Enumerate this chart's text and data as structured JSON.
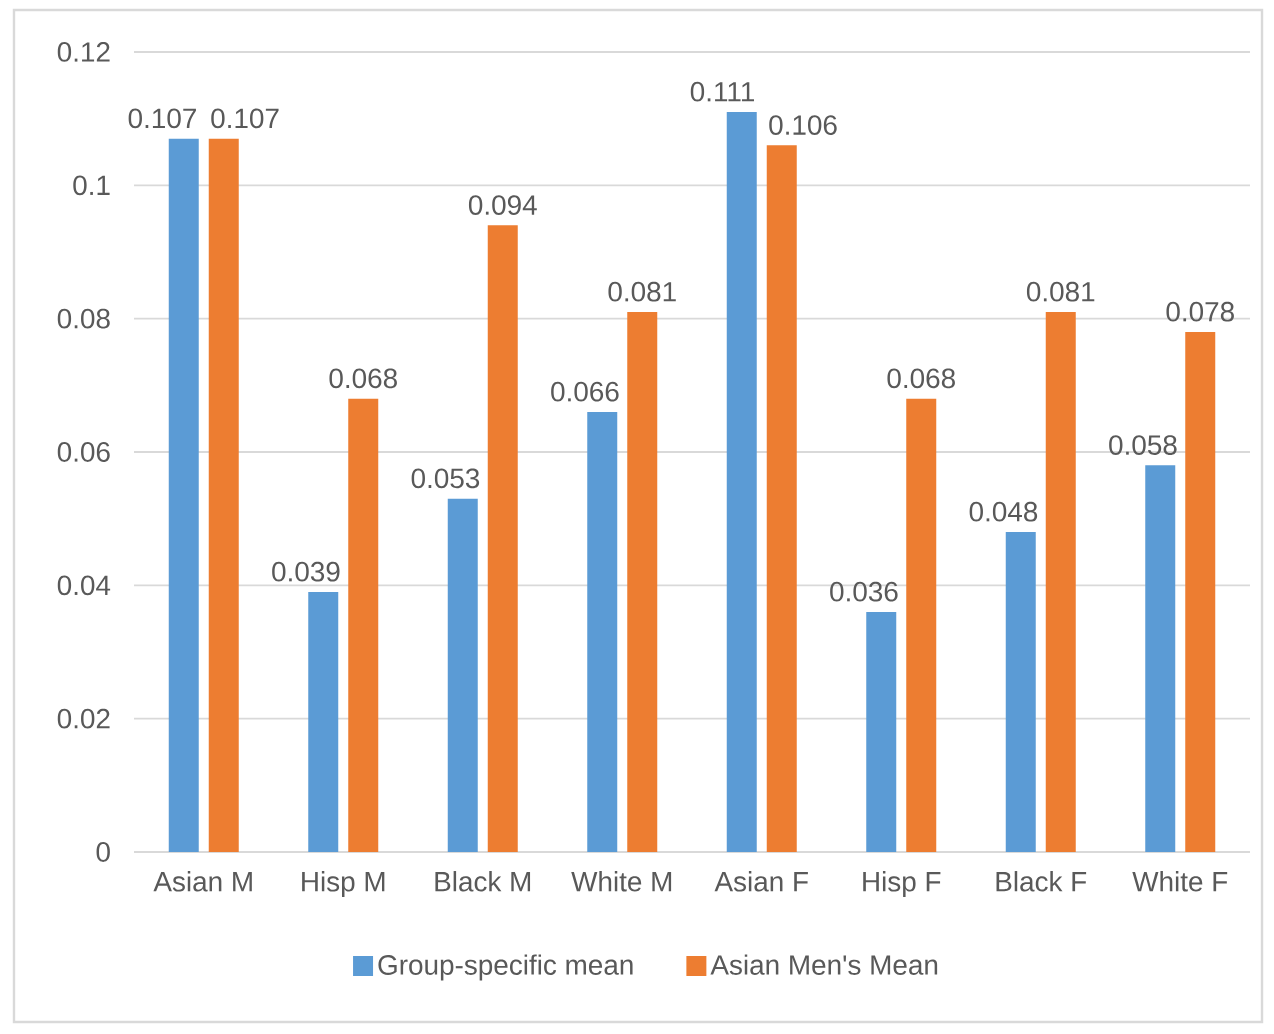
{
  "chart_data": {
    "type": "bar",
    "categories": [
      "Asian M",
      "Hisp M",
      "Black M",
      "White M",
      "Asian F",
      "Hisp F",
      "Black F",
      "White F"
    ],
    "series": [
      {
        "name": "Group-specific mean",
        "color": "#5b9bd5",
        "values": [
          0.107,
          0.039,
          0.053,
          0.066,
          0.111,
          0.036,
          0.048,
          0.058
        ]
      },
      {
        "name": "Asian Men's Mean",
        "color": "#ed7d31",
        "values": [
          0.107,
          0.068,
          0.094,
          0.081,
          0.106,
          0.068,
          0.081,
          0.078
        ]
      }
    ],
    "ylim": [
      0,
      0.12
    ],
    "yticks": [
      0,
      0.02,
      0.04,
      0.06,
      0.08,
      0.1,
      0.12
    ],
    "grid": "y",
    "legend": "bottom",
    "data_labels": true
  }
}
